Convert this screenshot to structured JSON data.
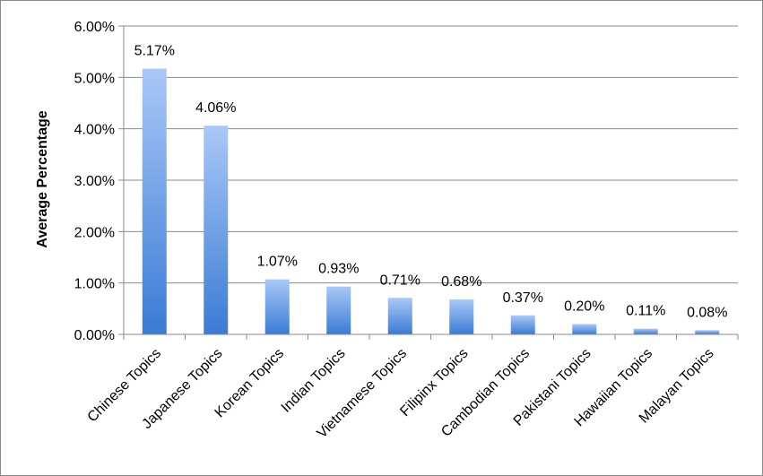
{
  "chart_data": {
    "type": "bar",
    "title": "",
    "xlabel": "",
    "ylabel": "Average Percentage",
    "ylim": [
      0,
      6
    ],
    "yticks": [
      "0.00%",
      "1.00%",
      "2.00%",
      "3.00%",
      "4.00%",
      "5.00%",
      "6.00%"
    ],
    "grid": true,
    "legend": "none",
    "categories": [
      "Chinese Topics",
      "Japanese Topics",
      "Korean Topics",
      "Indian Topics",
      "Vietnamese Topics",
      "Filipinx Topics",
      "Cambodian Topics",
      "Pakistani Topics",
      "Hawaiian Topics",
      "Malayan Topics"
    ],
    "values": [
      5.17,
      4.06,
      1.07,
      0.93,
      0.71,
      0.68,
      0.37,
      0.2,
      0.11,
      0.08
    ],
    "data_labels": [
      "5.17%",
      "4.06%",
      "1.07%",
      "0.93%",
      "0.71%",
      "0.68%",
      "0.37%",
      "0.20%",
      "0.11%",
      "0.08%"
    ],
    "colors": {
      "bar_top": "#a9c8f7",
      "bar_bottom": "#3a7bd5",
      "grid": "#8a8a8a",
      "axis": "#8a8a8a"
    }
  }
}
